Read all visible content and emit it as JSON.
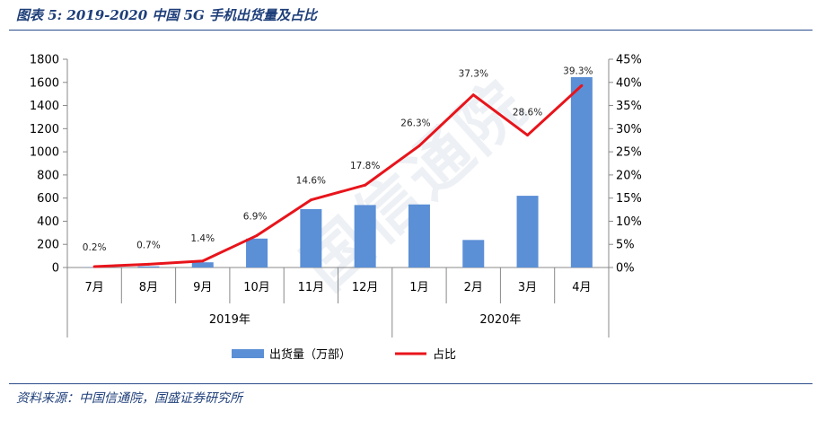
{
  "figure": {
    "title": "图表 5: 2019-2020 中国 5G 手机出货量及占比",
    "source": "资料来源：中国信通院，国盛证券研究所",
    "watermark": "国信通院"
  },
  "chart_data": {
    "type": "bar+line",
    "categories": [
      "7月",
      "8月",
      "9月",
      "10月",
      "11月",
      "12月",
      "1月",
      "2月",
      "3月",
      "4月"
    ],
    "groups": [
      {
        "label": "2019年",
        "start": 0,
        "end": 5
      },
      {
        "label": "2020年",
        "start": 6,
        "end": 9
      }
    ],
    "series": [
      {
        "name": "出货量（万部）",
        "kind": "bar",
        "axis": "left",
        "color": "#5B8FD6",
        "values": [
          2,
          10,
          45,
          250,
          505,
          540,
          545,
          238,
          620,
          1645
        ]
      },
      {
        "name": "占比",
        "kind": "line",
        "axis": "right",
        "color": "#E8141B",
        "values": [
          0.2,
          0.7,
          1.4,
          6.9,
          14.6,
          17.8,
          26.3,
          37.3,
          28.6,
          39.3
        ],
        "labels": [
          "0.2%",
          "0.7%",
          "1.4%",
          "6.9%",
          "14.6%",
          "17.8%",
          "26.3%",
          "37.3%",
          "28.6%",
          "39.3%"
        ]
      }
    ],
    "y_left": {
      "min": 0,
      "max": 1800,
      "step": 200,
      "ticks": [
        "0",
        "200",
        "400",
        "600",
        "800",
        "1000",
        "1200",
        "1400",
        "1600",
        "1800"
      ]
    },
    "y_right": {
      "min": 0,
      "max": 45,
      "step": 5,
      "ticks": [
        "0%",
        "5%",
        "10%",
        "15%",
        "20%",
        "25%",
        "30%",
        "35%",
        "40%",
        "45%"
      ]
    },
    "legend_position": "bottom-center",
    "grid": false
  }
}
